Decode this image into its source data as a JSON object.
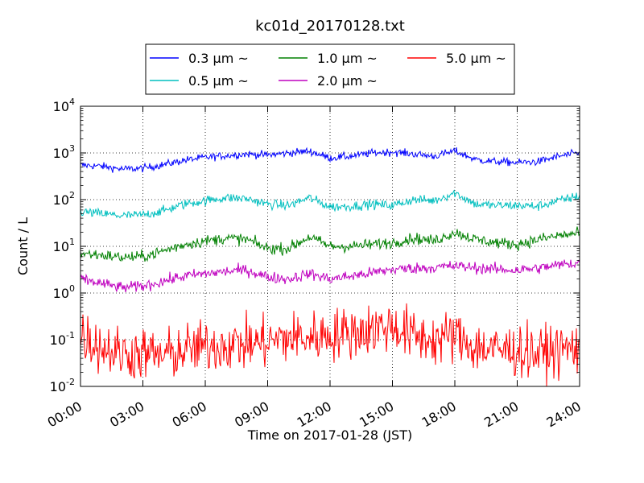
{
  "chart_data": {
    "type": "line",
    "title": "kc01d_20170128.txt",
    "xlabel": "Time on 2017-01-28 (JST)",
    "ylabel": "Count / L",
    "x_ticks": [
      "00:00",
      "03:00",
      "06:00",
      "09:00",
      "12:00",
      "15:00",
      "18:00",
      "21:00",
      "24:00"
    ],
    "x_range_hours": [
      0,
      24
    ],
    "y_scale": "log",
    "y_ticks": [
      {
        "base": "10",
        "exp": "-2"
      },
      {
        "base": "10",
        "exp": "-1"
      },
      {
        "base": "10",
        "exp": "0"
      },
      {
        "base": "10",
        "exp": "1"
      },
      {
        "base": "10",
        "exp": "2"
      },
      {
        "base": "10",
        "exp": "3"
      },
      {
        "base": "10",
        "exp": "4"
      }
    ],
    "ylim": [
      0.01,
      10000
    ],
    "grid": true,
    "legend_position": "top-center",
    "x_hours": [
      0,
      1,
      2,
      3,
      4,
      5,
      6,
      7,
      8,
      9,
      10,
      11,
      12,
      13,
      14,
      15,
      16,
      17,
      18,
      19,
      20,
      21,
      22,
      23,
      24
    ],
    "series": [
      {
        "name": "0.3 μm ~",
        "color": "#0000ff",
        "noise": 0.04,
        "values": [
          550,
          520,
          450,
          470,
          560,
          700,
          800,
          880,
          950,
          900,
          1000,
          1100,
          780,
          850,
          1000,
          1050,
          950,
          850,
          1100,
          720,
          650,
          620,
          650,
          850,
          1000
        ]
      },
      {
        "name": "0.5 μm ~",
        "color": "#00bfbf",
        "noise": 0.05,
        "values": [
          55,
          50,
          45,
          47,
          58,
          80,
          95,
          110,
          105,
          80,
          75,
          110,
          70,
          72,
          80,
          75,
          100,
          95,
          140,
          80,
          75,
          75,
          72,
          95,
          120
        ]
      },
      {
        "name": "1.0 μm ~",
        "color": "#008000",
        "noise": 0.06,
        "values": [
          7,
          6.5,
          5.8,
          6,
          8,
          11,
          13,
          15,
          14,
          9,
          9,
          16,
          10,
          10,
          11,
          12,
          15,
          13,
          20,
          14,
          12,
          11,
          14,
          17,
          19
        ]
      },
      {
        "name": "2.0 μm ~",
        "color": "#bf00bf",
        "noise": 0.06,
        "values": [
          2,
          1.6,
          1.3,
          1.4,
          1.8,
          2.3,
          2.6,
          2.9,
          3.1,
          2.2,
          2,
          2.6,
          2,
          2.3,
          2.7,
          3.2,
          3.4,
          3.5,
          3.8,
          3.5,
          3.2,
          3.1,
          3.4,
          4,
          4.5
        ]
      },
      {
        "name": "5.0 μm ~",
        "color": "#ff0000",
        "noise": 0.28,
        "values": [
          0.13,
          0.07,
          0.05,
          0.05,
          0.045,
          0.06,
          0.07,
          0.08,
          0.08,
          0.09,
          0.11,
          0.11,
          0.13,
          0.14,
          0.17,
          0.2,
          0.12,
          0.1,
          0.12,
          0.07,
          0.06,
          0.06,
          0.05,
          0.06,
          0.07
        ]
      }
    ]
  }
}
